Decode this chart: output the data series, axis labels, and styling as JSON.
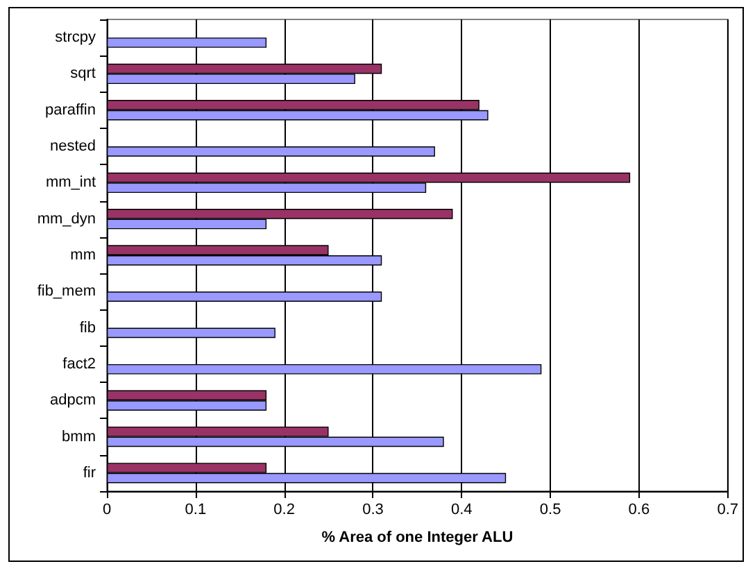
{
  "chart_data": {
    "type": "bar",
    "orientation": "horizontal",
    "xlabel": "% Area of one Integer ALU",
    "categories": [
      "strcpy",
      "sqrt",
      "paraffin",
      "nested",
      "mm_int",
      "mm_dyn",
      "mm",
      "fib_mem",
      "fib",
      "fact2",
      "adpcm",
      "bmm",
      "fir"
    ],
    "series": [
      {
        "color": "#993366",
        "values": [
          null,
          0.31,
          0.42,
          null,
          0.59,
          0.39,
          0.25,
          null,
          null,
          null,
          0.18,
          0.25,
          0.18
        ]
      },
      {
        "color": "#9999ff",
        "values": [
          0.18,
          0.28,
          0.43,
          0.37,
          0.36,
          0.18,
          0.31,
          0.31,
          0.19,
          0.49,
          0.18,
          0.38,
          0.45
        ]
      }
    ],
    "xlim": [
      0,
      0.7
    ],
    "xticks": [
      0,
      0.1,
      0.2,
      0.3,
      0.4,
      0.5,
      0.6,
      0.7
    ],
    "grid": "x"
  }
}
